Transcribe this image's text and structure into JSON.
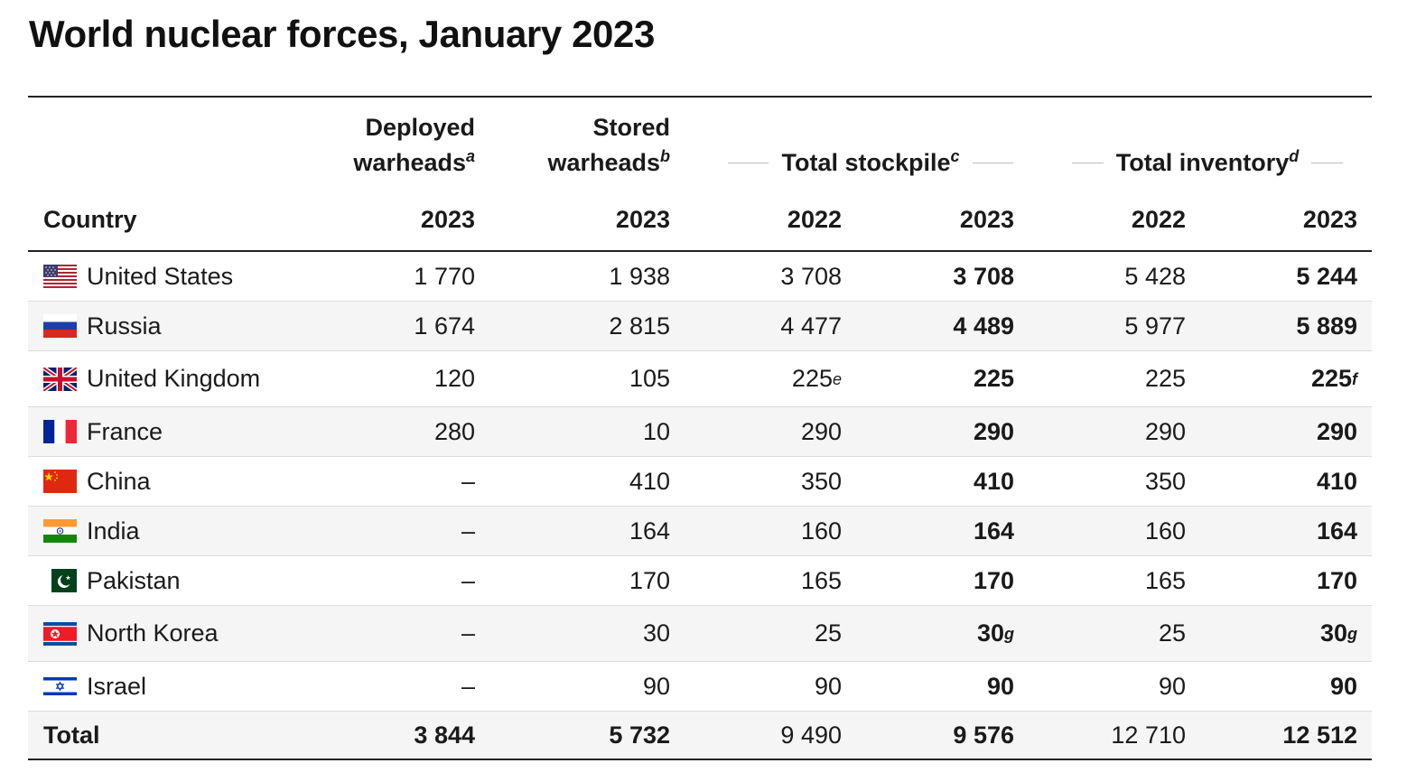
{
  "title": "World nuclear forces, January 2023",
  "header": {
    "deployed": {
      "line1": "Deployed",
      "line2": "warheads",
      "note": "a"
    },
    "stored": {
      "line1": "Stored",
      "line2": "warheads",
      "note": "b"
    },
    "stockpile": {
      "label": "Total stockpile",
      "note": "c"
    },
    "inventory": {
      "label": "Total inventory",
      "note": "d"
    },
    "country": "Country",
    "years": {
      "deployed": "2023",
      "stored": "2023",
      "stockpile_2022": "2022",
      "stockpile_2023": "2023",
      "inventory_2022": "2022",
      "inventory_2023": "2023"
    }
  },
  "rows": [
    {
      "country": "United States",
      "flag": "us-flag-icon",
      "deployed": "1 770",
      "stored": "1 938",
      "stock22": "3 708",
      "stock22_note": "",
      "stock23": "3 708",
      "stock23_note": "",
      "inv22": "5 428",
      "inv23": "5 244",
      "inv23_note": ""
    },
    {
      "country": "Russia",
      "flag": "russia-flag-icon",
      "deployed": "1 674",
      "stored": "2 815",
      "stock22": "4 477",
      "stock22_note": "",
      "stock23": "4 489",
      "stock23_note": "",
      "inv22": "5 977",
      "inv23": "5 889",
      "inv23_note": ""
    },
    {
      "country": "United Kingdom",
      "flag": "uk-flag-icon",
      "deployed": "120",
      "stored": "105",
      "stock22": "225",
      "stock22_note": "e",
      "stock23": "225",
      "stock23_note": "",
      "inv22": "225",
      "inv23": "225",
      "inv23_note": "f"
    },
    {
      "country": "France",
      "flag": "france-flag-icon",
      "deployed": "280",
      "stored": "10",
      "stock22": "290",
      "stock22_note": "",
      "stock23": "290",
      "stock23_note": "",
      "inv22": "290",
      "inv23": "290",
      "inv23_note": ""
    },
    {
      "country": "China",
      "flag": "china-flag-icon",
      "deployed": "–",
      "stored": "410",
      "stock22": "350",
      "stock22_note": "",
      "stock23": "410",
      "stock23_note": "",
      "inv22": "350",
      "inv23": "410",
      "inv23_note": ""
    },
    {
      "country": "India",
      "flag": "india-flag-icon",
      "deployed": "–",
      "stored": "164",
      "stock22": "160",
      "stock22_note": "",
      "stock23": "164",
      "stock23_note": "",
      "inv22": "160",
      "inv23": "164",
      "inv23_note": ""
    },
    {
      "country": "Pakistan",
      "flag": "pakistan-flag-icon",
      "deployed": "–",
      "stored": "170",
      "stock22": "165",
      "stock22_note": "",
      "stock23": "170",
      "stock23_note": "",
      "inv22": "165",
      "inv23": "170",
      "inv23_note": ""
    },
    {
      "country": "North Korea",
      "flag": "north-korea-flag-icon",
      "deployed": "–",
      "stored": "30",
      "stock22": "25",
      "stock22_note": "",
      "stock23": "30",
      "stock23_note": "g",
      "inv22": "25",
      "inv23": "30",
      "inv23_note": "g"
    },
    {
      "country": "Israel",
      "flag": "israel-flag-icon",
      "deployed": "–",
      "stored": "90",
      "stock22": "90",
      "stock22_note": "",
      "stock23": "90",
      "stock23_note": "",
      "inv22": "90",
      "inv23": "90",
      "inv23_note": ""
    }
  ],
  "total": {
    "label": "Total",
    "deployed": "3 844",
    "stored": "5 732",
    "stock22": "9 490",
    "stock23": "9 576",
    "inv22": "12 710",
    "inv23": "12 512"
  },
  "colors": {
    "rule": "#222222",
    "alt_row": "#f5f5f5",
    "row_divider": "#dcdcdc",
    "group_line": "#bdbdbd"
  }
}
